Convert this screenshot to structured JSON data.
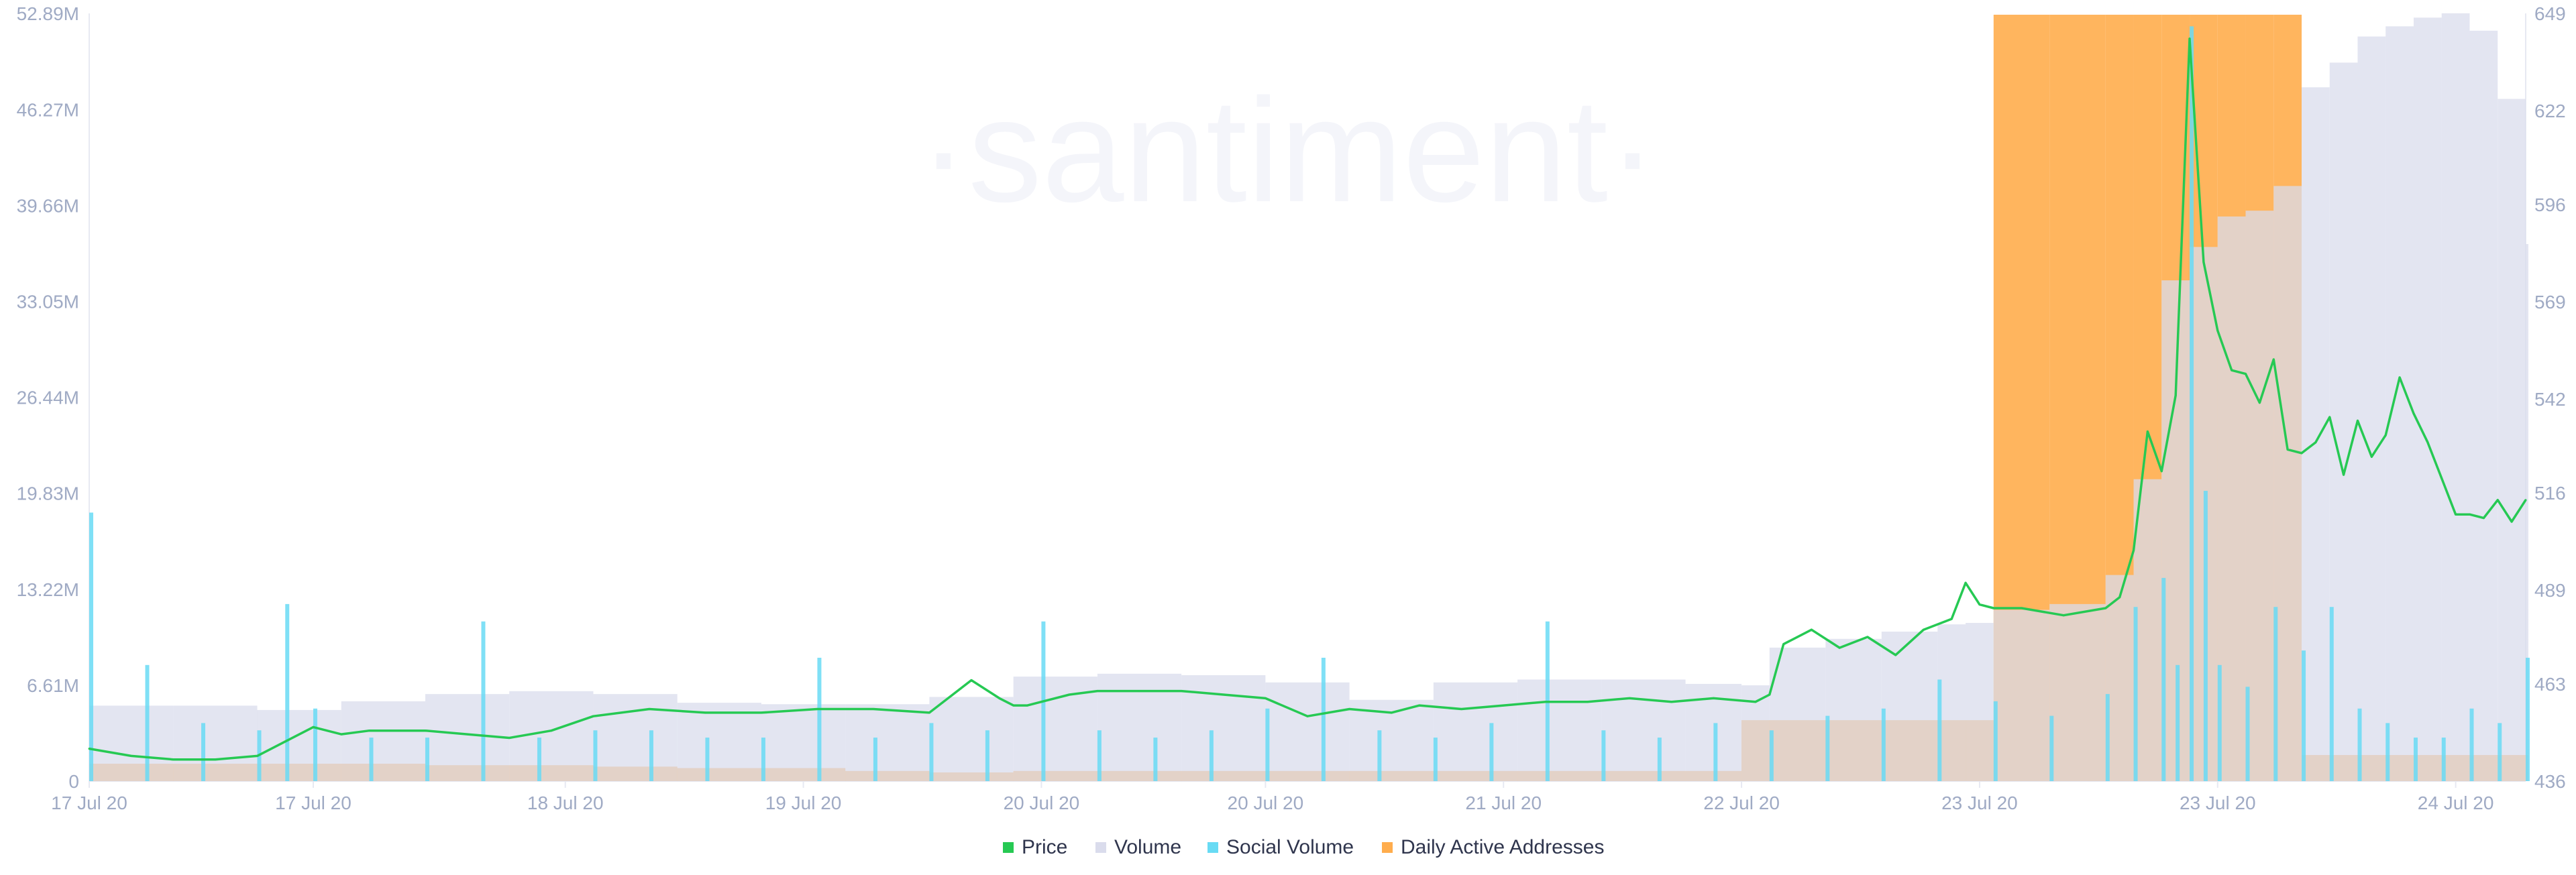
{
  "brand": {
    "watermark": "·santiment·"
  },
  "colors": {
    "price": "#26c953",
    "volume": "#dadcec",
    "social_volume": "#68dbf4",
    "daily_active_addresses": "#ffad4d",
    "axis_text": "#9faac4",
    "grid": "#e7e9f2"
  },
  "chart_data": {
    "type": "line",
    "title": "",
    "legend_position": "bottom-center",
    "grid": false,
    "left_axis": {
      "range": [
        0,
        52890000
      ],
      "tick_labels": [
        "0",
        "6.61M",
        "13.22M",
        "19.83M",
        "26.44M",
        "33.05M",
        "39.66M",
        "46.27M",
        "52.89M"
      ],
      "tick_values": [
        0,
        6610000,
        13220000,
        19830000,
        26440000,
        33050000,
        39660000,
        46270000,
        52890000
      ]
    },
    "right_axis": {
      "range": [
        436,
        649
      ],
      "tick_labels": [
        "436",
        "463",
        "489",
        "516",
        "542",
        "569",
        "596",
        "622",
        "649"
      ],
      "tick_values": [
        436,
        463,
        489,
        516,
        542,
        569,
        596,
        622,
        649
      ]
    },
    "x_axis": {
      "range": [
        0,
        174
      ],
      "tick_labels": [
        "17 Jul 20",
        "17 Jul 20",
        "18 Jul 20",
        "19 Jul 20",
        "20 Jul 20",
        "20 Jul 20",
        "21 Jul 20",
        "22 Jul 20",
        "23 Jul 20",
        "23 Jul 20",
        "24 Jul 20"
      ],
      "tick_hours": [
        0,
        16,
        34,
        51,
        68,
        84,
        101,
        118,
        135,
        152,
        169
      ]
    },
    "series": [
      {
        "name": "Price",
        "type": "line",
        "axis": "right",
        "x": [
          0,
          3,
          6,
          9,
          12,
          14,
          16,
          18,
          20,
          22,
          24,
          27,
          30,
          33,
          36,
          40,
          44,
          48,
          52,
          56,
          60,
          63,
          65,
          66,
          67,
          68,
          70,
          72,
          75,
          78,
          81,
          84,
          87,
          90,
          93,
          95,
          98,
          101,
          104,
          107,
          110,
          113,
          116,
          119,
          120,
          121,
          123,
          125,
          127,
          129,
          131,
          133,
          134,
          135,
          136,
          138,
          141,
          144,
          145,
          146,
          147,
          148,
          149,
          150,
          151,
          152,
          153,
          154,
          155,
          156,
          157,
          158,
          159,
          160,
          161,
          162,
          163,
          164,
          165,
          166,
          167,
          168,
          169,
          170,
          171,
          172,
          173,
          174
        ],
        "values": [
          445,
          443,
          442,
          442,
          443,
          447,
          451,
          449,
          450,
          450,
          450,
          449,
          448,
          450,
          454,
          456,
          455,
          455,
          456,
          456,
          455,
          464,
          459,
          457,
          457,
          458,
          460,
          461,
          461,
          461,
          460,
          459,
          454,
          456,
          455,
          457,
          456,
          457,
          458,
          458,
          459,
          458,
          459,
          458,
          460,
          474,
          478,
          473,
          476,
          471,
          478,
          481,
          491,
          485,
          484,
          484,
          482,
          484,
          487,
          500,
          533,
          522,
          543,
          642,
          580,
          561,
          550,
          549,
          541,
          553,
          528,
          527,
          530,
          537,
          521,
          536,
          526,
          532,
          548,
          538,
          530,
          520,
          510,
          510,
          509,
          514,
          508,
          514
        ]
      },
      {
        "name": "Volume",
        "type": "bar",
        "axis": "left",
        "x": [
          0,
          6,
          12,
          18,
          24,
          30,
          36,
          42,
          48,
          54,
          60,
          66,
          72,
          78,
          84,
          90,
          96,
          102,
          108,
          114,
          118,
          120,
          124,
          128,
          132,
          134,
          136,
          140,
          144,
          146,
          148,
          150,
          152,
          154,
          156,
          158,
          160,
          162,
          164,
          166,
          168,
          170,
          172,
          174
        ],
        "values": [
          5200000,
          5200000,
          4900000,
          5500000,
          6000000,
          6200000,
          6000000,
          5400000,
          5300000,
          5300000,
          5800000,
          7200000,
          7400000,
          7300000,
          6800000,
          5600000,
          6800000,
          7000000,
          7000000,
          6700000,
          6600000,
          9200000,
          9800000,
          10300000,
          10800000,
          10900000,
          11800000,
          12200000,
          14200000,
          20800000,
          34500000,
          36800000,
          38900000,
          39300000,
          41000000,
          47800000,
          49500000,
          51300000,
          52000000,
          52600000,
          52900000,
          51700000,
          47000000,
          37000000
        ]
      },
      {
        "name": "Social Volume",
        "type": "bar",
        "axis": "left",
        "x": [
          0,
          4,
          8,
          12,
          14,
          16,
          20,
          24,
          28,
          32,
          36,
          40,
          44,
          48,
          52,
          56,
          60,
          64,
          68,
          72,
          76,
          80,
          84,
          88,
          92,
          96,
          100,
          104,
          108,
          112,
          116,
          120,
          124,
          128,
          132,
          136,
          140,
          144,
          146,
          148,
          149,
          150,
          151,
          152,
          154,
          156,
          158,
          160,
          162,
          164,
          166,
          168,
          170,
          172,
          174
        ],
        "values": [
          18500000,
          8000000,
          4000000,
          3500000,
          12200000,
          5000000,
          3000000,
          3000000,
          11000000,
          3000000,
          3500000,
          3500000,
          3000000,
          3000000,
          8500000,
          3000000,
          4000000,
          3500000,
          11000000,
          3500000,
          3000000,
          3500000,
          5000000,
          8500000,
          3500000,
          3000000,
          4000000,
          11000000,
          3500000,
          3000000,
          4000000,
          3500000,
          4500000,
          5000000,
          7000000,
          5500000,
          4500000,
          6000000,
          12000000,
          14000000,
          8000000,
          52000000,
          20000000,
          8000000,
          6500000,
          12000000,
          9000000,
          12000000,
          5000000,
          4000000,
          3000000,
          3000000,
          5000000,
          4000000,
          8500000
        ]
      },
      {
        "name": "Daily Active Addresses",
        "type": "bar",
        "axis": "left",
        "x": [
          0,
          6,
          12,
          18,
          24,
          30,
          36,
          42,
          48,
          54,
          60,
          66,
          72,
          78,
          84,
          90,
          96,
          102,
          108,
          114,
          118,
          120,
          124,
          128,
          132,
          134,
          136,
          140,
          144,
          146,
          148,
          150,
          152,
          154,
          156,
          158,
          160,
          162,
          164,
          166,
          168,
          170,
          172,
          174
        ],
        "values": [
          1200000,
          1200000,
          1200000,
          1200000,
          1100000,
          1100000,
          1000000,
          900000,
          900000,
          700000,
          600000,
          700000,
          700000,
          700000,
          700000,
          700000,
          700000,
          700000,
          700000,
          700000,
          4200000,
          4200000,
          4200000,
          4200000,
          4200000,
          4200000,
          52800000,
          52800000,
          52800000,
          52800000,
          52800000,
          52800000,
          52800000,
          52800000,
          52800000,
          1800000,
          1800000,
          1800000,
          1800000,
          1800000,
          1800000,
          1800000,
          1800000,
          1800000
        ]
      }
    ]
  }
}
